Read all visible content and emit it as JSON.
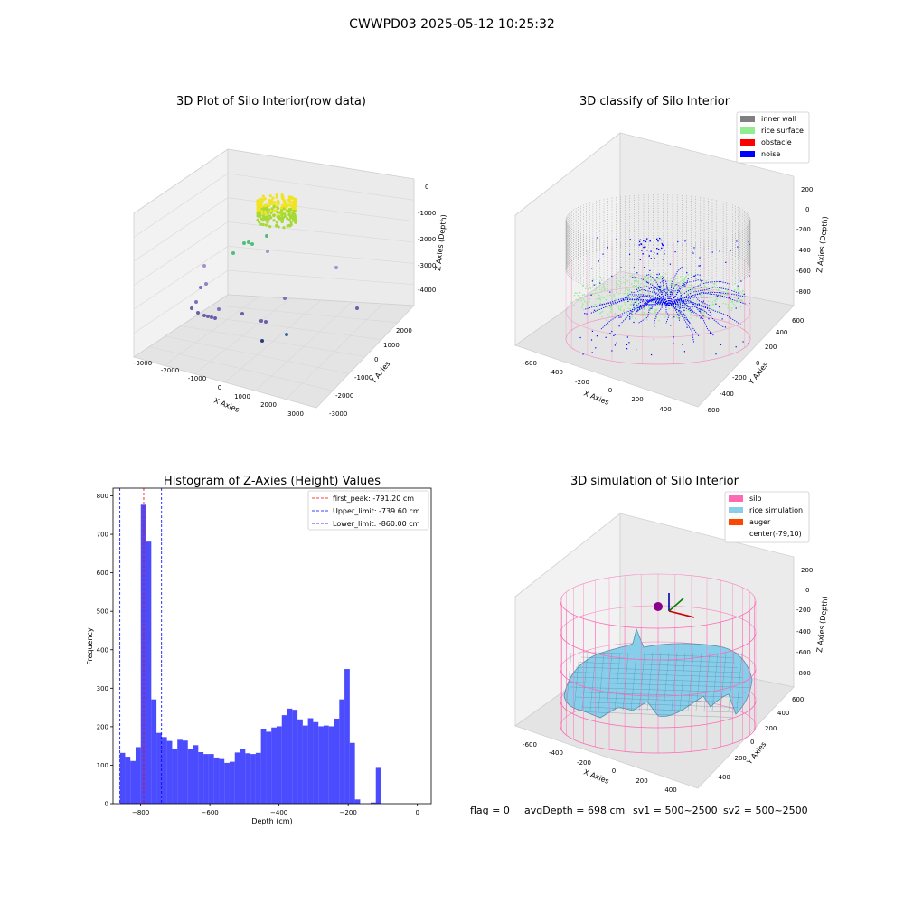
{
  "suptitle": "CWWPD03 2025-05-12 10:25:32",
  "footer": {
    "flag": "flag = 0",
    "avg_depth": "avgDepth = 698 cm",
    "sv1": "sv1 = 500~2500",
    "sv2": "sv2 = 500~2500"
  },
  "colors": {
    "inner_wall": "#808080",
    "rice_surface": "#90ee90",
    "obstacle": "#ff0000",
    "noise": "#0000ff",
    "silo": "#ff69b4",
    "rice_simulation": "#87ceeb",
    "auger": "#ff4500",
    "hist_bar": "#0000ff",
    "first_peak_line": "#ff0000",
    "limit_line": "#0000ff"
  },
  "chart_data": [
    {
      "type": "scatter3d",
      "title": "3D Plot of Silo Interior(row data)",
      "xlabel": "X Axies",
      "ylabel": "Y Axies",
      "zlabel": "Z Axies (Depth)",
      "xlim": [
        -3000,
        3000
      ],
      "ylim": [
        -3000,
        2000
      ],
      "zlim": [
        -4000,
        0
      ],
      "x_ticks": [
        "-3000",
        "-2000",
        "-1000",
        "0",
        "1000",
        "2000",
        "3000"
      ],
      "y_ticks": [
        "-3000",
        "-2000",
        "-1000",
        "0",
        "1000",
        "2000"
      ],
      "z_ticks": [
        "-4000",
        "-3000",
        "-2000",
        "-1000",
        "0"
      ]
    },
    {
      "type": "scatter3d",
      "title": "3D classify of Silo Interior",
      "xlabel": "X Axies",
      "ylabel": "Y Axies",
      "zlabel": "Z Axies (Depth)",
      "xlim": [
        -600,
        400
      ],
      "ylim": [
        -600,
        600
      ],
      "zlim": [
        -800,
        200
      ],
      "x_ticks": [
        "-600",
        "-400",
        "-200",
        "0",
        "200",
        "400"
      ],
      "y_ticks": [
        "-600",
        "-400",
        "-200",
        "0",
        "200",
        "400",
        "600"
      ],
      "z_ticks": [
        "-800",
        "-600",
        "-400",
        "-200",
        "0",
        "200"
      ],
      "legend_position": "top-right",
      "legend": [
        "inner wall",
        "rice surface",
        "obstacle",
        "noise"
      ]
    },
    {
      "type": "bar",
      "title": "Histogram of Z-Axies (Height) Values",
      "xlabel": "Depth (cm)",
      "ylabel": "Frequency",
      "xlim": [
        -880,
        40
      ],
      "ylim": [
        0,
        820
      ],
      "x_ticks": [
        -800,
        -600,
        -400,
        -200,
        0
      ],
      "y_ticks": [
        0,
        100,
        200,
        300,
        400,
        500,
        600,
        700,
        800
      ],
      "bin_start": -860,
      "bin_width": 15.1,
      "values": [
        132,
        122,
        111,
        147,
        777,
        681,
        271,
        184,
        173,
        163,
        142,
        166,
        164,
        141,
        152,
        134,
        129,
        129,
        120,
        116,
        106,
        109,
        133,
        142,
        131,
        129,
        132,
        195,
        187,
        198,
        201,
        230,
        247,
        244,
        219,
        203,
        222,
        212,
        201,
        203,
        201,
        221,
        271,
        350,
        158,
        11,
        0,
        0,
        3,
        93
      ],
      "vlines": [
        {
          "label": "first_peak: -791.20 cm",
          "x": -791.2,
          "style": "first_peak_line"
        },
        {
          "label": "Upper_limit: -739.60 cm",
          "x": -739.6,
          "style": "limit_line"
        },
        {
          "label": "Lower_limit: -860.00 cm",
          "x": -860.0,
          "style": "limit_line"
        }
      ],
      "legend_position": "top-right"
    },
    {
      "type": "surface3d",
      "title": "3D simulation of Silo Interior",
      "xlabel": "X Axies",
      "ylabel": "Y Axies",
      "zlabel": "Z Axies (Depth)",
      "xlim": [
        -600,
        400
      ],
      "ylim": [
        -600,
        600
      ],
      "zlim": [
        -800,
        200
      ],
      "x_ticks": [
        "-600",
        "-400",
        "-200",
        "0",
        "200",
        "400"
      ],
      "y_ticks": [
        "-400",
        "-200",
        "0",
        "200",
        "400",
        "600"
      ],
      "z_ticks": [
        "-800",
        "-600",
        "-400",
        "-200",
        "0",
        "200"
      ],
      "legend_position": "top-right",
      "legend": [
        "silo",
        "rice simulation",
        "auger",
        "center(-79,10)"
      ]
    }
  ]
}
